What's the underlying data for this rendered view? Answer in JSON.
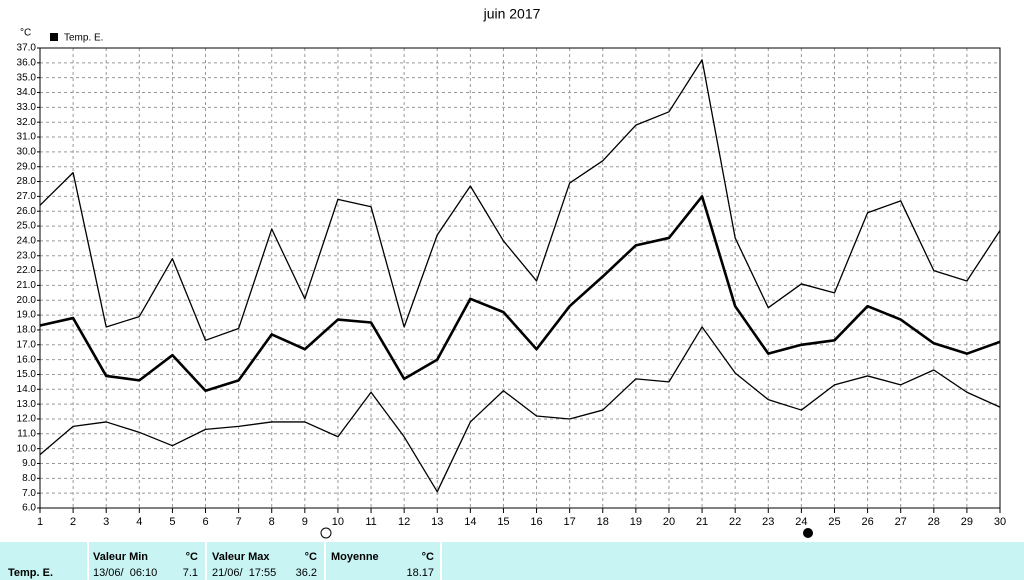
{
  "chart_data": {
    "type": "line",
    "title": "juin 2017",
    "y_unit": "°C",
    "legend": "Temp. E.",
    "x": [
      1,
      2,
      3,
      4,
      5,
      6,
      7,
      8,
      9,
      10,
      11,
      12,
      13,
      14,
      15,
      16,
      17,
      18,
      19,
      20,
      21,
      22,
      23,
      24,
      25,
      26,
      27,
      28,
      29,
      30
    ],
    "xlim": [
      1,
      30
    ],
    "xticks": [
      1,
      2,
      3,
      4,
      5,
      6,
      7,
      8,
      9,
      10,
      11,
      12,
      13,
      14,
      15,
      16,
      17,
      18,
      19,
      20,
      21,
      22,
      23,
      24,
      25,
      26,
      27,
      28,
      29,
      30
    ],
    "ylim": [
      6,
      37
    ],
    "yticks": [
      {
        "value": 6,
        "label": "6.0"
      },
      {
        "value": 7,
        "label": "7.0"
      },
      {
        "value": 8,
        "label": "8.0"
      },
      {
        "value": 9,
        "label": "9.0"
      },
      {
        "value": 10,
        "label": "10.0"
      },
      {
        "value": 11,
        "label": "11.0"
      },
      {
        "value": 12,
        "label": "12.0"
      },
      {
        "value": 13,
        "label": "13.0"
      },
      {
        "value": 14,
        "label": "14.0"
      },
      {
        "value": 15,
        "label": "15.0"
      },
      {
        "value": 16,
        "label": "16.0"
      },
      {
        "value": 17,
        "label": "17.0"
      },
      {
        "value": 18,
        "label": "18.0"
      },
      {
        "value": 19,
        "label": "19.0"
      },
      {
        "value": 20,
        "label": "20.0"
      },
      {
        "value": 21,
        "label": "21.0"
      },
      {
        "value": 22,
        "label": "22.0"
      },
      {
        "value": 23,
        "label": "23.0"
      },
      {
        "value": 24,
        "label": "24.0"
      },
      {
        "value": 25,
        "label": "25.0"
      },
      {
        "value": 26,
        "label": "26.0"
      },
      {
        "value": 27,
        "label": "27.0"
      },
      {
        "value": 28,
        "label": "28.0"
      },
      {
        "value": 29,
        "label": "29.0"
      },
      {
        "value": 30,
        "label": "30.0"
      },
      {
        "value": 31,
        "label": "31.0"
      },
      {
        "value": 32,
        "label": "32.0"
      },
      {
        "value": 33,
        "label": "33.0"
      },
      {
        "value": 34,
        "label": "34.0"
      },
      {
        "value": 35,
        "label": "35.0"
      },
      {
        "value": 36,
        "label": "36.0"
      },
      {
        "value": 37,
        "label": "37.0"
      }
    ],
    "grid": true,
    "series": [
      {
        "color": "#000000",
        "width": 1.3,
        "values": [
          26.4,
          28.6,
          18.2,
          18.9,
          22.8,
          17.3,
          18.1,
          24.8,
          20.1,
          26.8,
          26.3,
          18.2,
          24.4,
          27.7,
          24.0,
          21.3,
          27.9,
          29.4,
          31.8,
          32.7,
          36.2,
          24.2,
          19.5,
          21.1,
          20.5,
          25.9,
          26.7,
          22.0,
          21.3,
          24.7
        ]
      },
      {
        "color": "#000000",
        "width": 2.6,
        "values": [
          18.3,
          18.8,
          14.9,
          14.6,
          16.3,
          13.9,
          14.6,
          17.7,
          16.7,
          18.7,
          18.5,
          14.7,
          16.0,
          20.1,
          19.2,
          16.7,
          19.6,
          21.6,
          23.7,
          24.2,
          27.0,
          19.6,
          16.4,
          17.0,
          17.3,
          19.6,
          18.7,
          17.1,
          16.4,
          17.2
        ]
      },
      {
        "color": "#000000",
        "width": 1.3,
        "values": [
          9.6,
          11.5,
          11.8,
          11.1,
          10.2,
          11.3,
          11.5,
          11.8,
          11.8,
          10.8,
          13.8,
          10.8,
          7.1,
          11.8,
          13.9,
          12.2,
          12.0,
          12.6,
          14.7,
          14.5,
          18.2,
          15.1,
          13.3,
          12.6,
          14.3,
          14.9,
          14.3,
          15.3,
          13.8,
          12.8
        ]
      }
    ]
  },
  "summary": {
    "row_label": "Temp. E.",
    "min": {
      "header": "Valeur Min",
      "unit": "°C",
      "when": "13/06/  06:10",
      "value": "7.1"
    },
    "max": {
      "header": "Valeur Max",
      "unit": "°C",
      "when": "21/06/  17:55",
      "value": "36.2"
    },
    "mean": {
      "header": "Moyenne",
      "unit": "°C",
      "value": "18.17"
    }
  }
}
